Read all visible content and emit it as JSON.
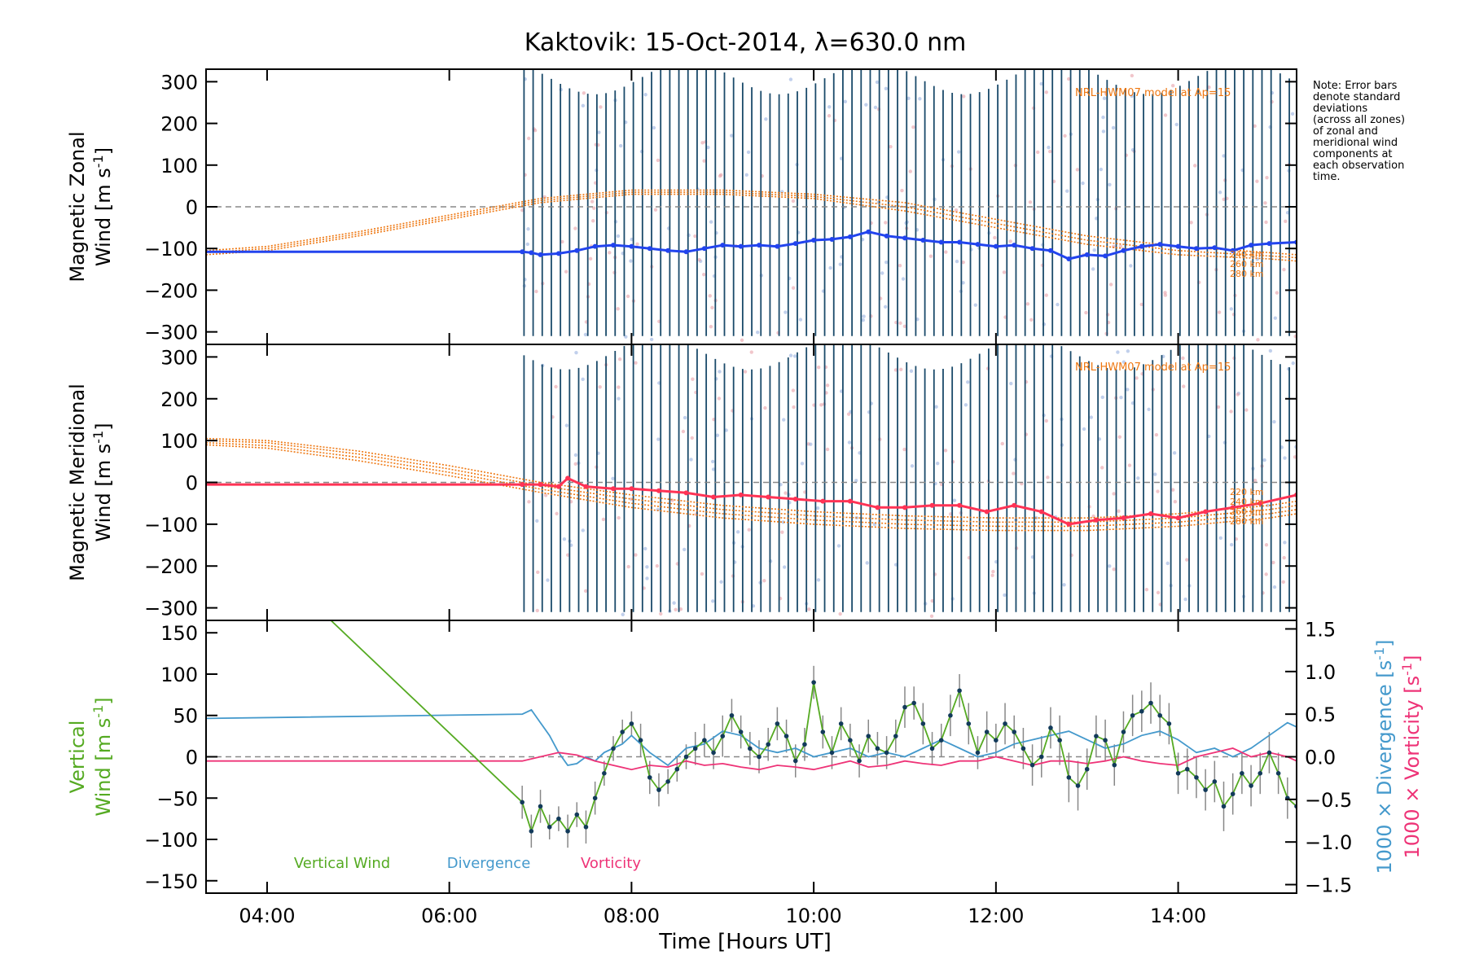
{
  "title": "Kaktovik: 15-Oct-2014, λ=630.0 nm",
  "note": [
    "Note: Error bars",
    "denote standard",
    "deviations",
    "(across all zones)",
    "of zonal and",
    "meridional wind",
    "components at",
    "each observation",
    "time."
  ],
  "xlabel": "Time [Hours UT]",
  "colors": {
    "zonal": "#2244ee",
    "meridional": "#ff3355",
    "vertical": "#55aa22",
    "divergence": "#4499cc",
    "vorticity": "#ee3377",
    "hwm": "#ee7711",
    "errorbar": "#1a4a6a",
    "axis": "#000000"
  },
  "chart_data": [
    {
      "type": "line",
      "ylabel_lines": [
        "Magnetic Zonal",
        "Wind [m s^-1]"
      ],
      "ylim": [
        -330,
        330
      ],
      "yticks": [
        300,
        200,
        100,
        0,
        -100,
        -200,
        -300
      ],
      "xlim": [
        3.33,
        15.3
      ],
      "xticks": [
        "04:00",
        "06:00",
        "08:00",
        "10:00",
        "12:00",
        "14:00"
      ],
      "model_label": "NRL-HWM07 model at Ap=15",
      "model_alt_labels": [
        "240 km",
        "260 km",
        "280 km"
      ],
      "series": [
        {
          "x": [
            3.33,
            6.8,
            6.9,
            7.0,
            7.2,
            7.4,
            7.6,
            7.8,
            8.0,
            8.2,
            8.4,
            8.6,
            8.8,
            9.0,
            9.2,
            9.4,
            9.6,
            9.8,
            10.0,
            10.2,
            10.4,
            10.6,
            10.8,
            11.0,
            11.2,
            11.4,
            11.6,
            11.8,
            12.0,
            12.2,
            12.4,
            12.6,
            12.8,
            13.0,
            13.2,
            13.4,
            13.6,
            13.8,
            14.0,
            14.2,
            14.4,
            14.6,
            14.8,
            15.0,
            15.3
          ],
          "y": [
            -108,
            -108,
            -110,
            -115,
            -112,
            -105,
            -95,
            -92,
            -95,
            -100,
            -105,
            -108,
            -100,
            -92,
            -95,
            -92,
            -95,
            -88,
            -80,
            -78,
            -72,
            -60,
            -70,
            -75,
            -80,
            -85,
            -85,
            -90,
            -95,
            -92,
            -100,
            -105,
            -125,
            -115,
            -118,
            -105,
            -95,
            -90,
            -95,
            -100,
            -98,
            -105,
            -92,
            -88,
            -85
          ]
        }
      ],
      "model_series": [
        {
          "x": [
            3.33,
            4,
            5,
            6,
            7,
            8,
            9,
            10,
            11,
            12,
            13,
            14,
            15,
            15.3
          ],
          "y": [
            -105,
            -95,
            -60,
            -20,
            20,
            40,
            40,
            30,
            10,
            -30,
            -70,
            -95,
            -110,
            -115
          ]
        },
        {
          "x": [
            3.33,
            4,
            5,
            6,
            7,
            8,
            9,
            10,
            11,
            12,
            13,
            14,
            15,
            15.3
          ],
          "y": [
            -110,
            -100,
            -65,
            -25,
            15,
            35,
            35,
            25,
            0,
            -40,
            -80,
            -105,
            -118,
            -122
          ]
        },
        {
          "x": [
            3.33,
            4,
            5,
            6,
            7,
            8,
            9,
            10,
            11,
            12,
            13,
            14,
            15,
            15.3
          ],
          "y": [
            -115,
            -105,
            -70,
            -30,
            10,
            30,
            30,
            20,
            -10,
            -50,
            -90,
            -115,
            -125,
            -130
          ]
        }
      ]
    },
    {
      "type": "line",
      "ylabel_lines": [
        "Magnetic Meridional",
        "Wind [m s^-1]"
      ],
      "ylim": [
        -330,
        330
      ],
      "yticks": [
        300,
        200,
        100,
        0,
        -100,
        -200,
        -300
      ],
      "xlim": [
        3.33,
        15.3
      ],
      "xticks": [
        "04:00",
        "06:00",
        "08:00",
        "10:00",
        "12:00",
        "14:00"
      ],
      "model_label": "NRL-HWM07 model at Ap=15",
      "model_alt_labels": [
        "220 km",
        "240 km",
        "260 km",
        "280 km"
      ],
      "series": [
        {
          "x": [
            3.33,
            6.8,
            7.0,
            7.2,
            7.3,
            7.5,
            7.8,
            8.0,
            8.3,
            8.6,
            8.9,
            9.2,
            9.5,
            9.8,
            10.1,
            10.4,
            10.7,
            11.0,
            11.3,
            11.6,
            11.9,
            12.2,
            12.5,
            12.8,
            13.1,
            13.4,
            13.7,
            14.0,
            14.3,
            14.6,
            14.9,
            15.3
          ],
          "y": [
            -5,
            -5,
            -5,
            -10,
            10,
            -10,
            -15,
            -15,
            -20,
            -25,
            -35,
            -30,
            -35,
            -40,
            -45,
            -45,
            -60,
            -60,
            -55,
            -55,
            -70,
            -55,
            -70,
            -100,
            -90,
            -85,
            -75,
            -85,
            -70,
            -60,
            -50,
            -30
          ]
        }
      ],
      "model_series": [
        {
          "x": [
            3.33,
            4,
            5,
            6,
            7,
            8,
            9,
            10,
            11,
            12,
            13,
            14,
            15,
            15.3
          ],
          "y": [
            105,
            100,
            75,
            40,
            0,
            -30,
            -55,
            -70,
            -80,
            -85,
            -85,
            -75,
            -55,
            -45
          ]
        },
        {
          "x": [
            3.33,
            4,
            5,
            6,
            7,
            8,
            9,
            10,
            11,
            12,
            13,
            14,
            15,
            15.3
          ],
          "y": [
            100,
            95,
            68,
            32,
            -8,
            -40,
            -65,
            -80,
            -90,
            -95,
            -95,
            -85,
            -65,
            -55
          ]
        },
        {
          "x": [
            3.33,
            4,
            5,
            6,
            7,
            8,
            9,
            10,
            11,
            12,
            13,
            14,
            15,
            15.3
          ],
          "y": [
            95,
            88,
            60,
            24,
            -16,
            -50,
            -75,
            -90,
            -100,
            -105,
            -105,
            -95,
            -75,
            -65
          ]
        },
        {
          "x": [
            3.33,
            4,
            5,
            6,
            7,
            8,
            9,
            10,
            11,
            12,
            13,
            14,
            15,
            15.3
          ],
          "y": [
            90,
            82,
            52,
            16,
            -24,
            -60,
            -85,
            -100,
            -110,
            -115,
            -115,
            -105,
            -85,
            -75
          ]
        }
      ]
    },
    {
      "type": "line",
      "ylabel_lines": [
        "Vertical",
        "Wind [m s^-1]"
      ],
      "ylim": [
        -165,
        165
      ],
      "yticks": [
        150,
        100,
        50,
        0,
        -50,
        -100,
        -150
      ],
      "y2label_divergence": "1000 × Divergence [s^-1]",
      "y2label_vorticity": "1000 × Vorticity [s^-1]",
      "y2lim": [
        -1.6,
        1.6
      ],
      "y2ticks": [
        1.5,
        1.0,
        0.5,
        0.0,
        -0.5,
        -1.0,
        -1.5
      ],
      "xlim": [
        3.33,
        15.3
      ],
      "xticks": [
        "04:00",
        "06:00",
        "08:00",
        "10:00",
        "12:00",
        "14:00"
      ],
      "legend": [
        "Vertical Wind",
        "Divergence",
        "Vorticity"
      ],
      "vertical_wind": {
        "x": [
          4.7,
          6.8,
          6.9,
          7.0,
          7.1,
          7.2,
          7.3,
          7.4,
          7.5,
          7.6,
          7.7,
          7.8,
          7.9,
          8.0,
          8.1,
          8.2,
          8.3,
          8.4,
          8.5,
          8.6,
          8.7,
          8.8,
          8.9,
          9.0,
          9.1,
          9.2,
          9.3,
          9.4,
          9.5,
          9.6,
          9.7,
          9.8,
          9.9,
          10.0,
          10.1,
          10.2,
          10.3,
          10.4,
          10.5,
          10.6,
          10.7,
          10.8,
          10.9,
          11.0,
          11.1,
          11.2,
          11.3,
          11.4,
          11.5,
          11.6,
          11.7,
          11.8,
          11.9,
          12.0,
          12.1,
          12.2,
          12.3,
          12.4,
          12.5,
          12.6,
          12.7,
          12.8,
          12.9,
          13.0,
          13.1,
          13.2,
          13.3,
          13.4,
          13.5,
          13.6,
          13.7,
          13.8,
          13.9,
          14.0,
          14.1,
          14.2,
          14.3,
          14.4,
          14.5,
          14.6,
          14.7,
          14.8,
          14.9,
          15.0,
          15.1,
          15.2,
          15.3
        ],
        "y": [
          165,
          -55,
          -90,
          -60,
          -85,
          -75,
          -90,
          -70,
          -85,
          -50,
          -20,
          10,
          30,
          40,
          20,
          -25,
          -40,
          -30,
          -15,
          0,
          10,
          20,
          5,
          25,
          50,
          30,
          10,
          0,
          15,
          40,
          25,
          -5,
          15,
          90,
          30,
          5,
          40,
          20,
          -5,
          25,
          10,
          5,
          25,
          60,
          65,
          40,
          10,
          20,
          50,
          80,
          40,
          5,
          30,
          20,
          40,
          30,
          10,
          -10,
          0,
          35,
          20,
          -25,
          -35,
          -15,
          25,
          20,
          -10,
          30,
          50,
          55,
          65,
          50,
          40,
          -20,
          -15,
          -25,
          -40,
          -30,
          -60,
          -45,
          -20,
          -35,
          -20,
          5,
          -20,
          -50,
          -60
        ],
        "err": [
          0,
          20,
          20,
          20,
          15,
          15,
          20,
          15,
          20,
          20,
          15,
          15,
          15,
          15,
          20,
          20,
          20,
          15,
          15,
          15,
          20,
          20,
          20,
          25,
          20,
          20,
          20,
          20,
          20,
          20,
          20,
          20,
          20,
          20,
          20,
          20,
          20,
          20,
          20,
          20,
          20,
          20,
          20,
          25,
          20,
          25,
          20,
          20,
          25,
          20,
          25,
          20,
          25,
          20,
          25,
          20,
          25,
          25,
          25,
          25,
          30,
          30,
          30,
          25,
          25,
          25,
          25,
          25,
          25,
          25,
          25,
          25,
          25,
          25,
          25,
          25,
          25,
          25,
          30,
          25,
          25,
          25,
          25,
          25,
          25,
          25,
          25
        ]
      },
      "divergence": {
        "x": [
          3.33,
          6.8,
          6.9,
          7.0,
          7.1,
          7.2,
          7.3,
          7.4,
          7.5,
          7.6,
          7.7,
          7.8,
          7.9,
          8.0,
          8.2,
          8.4,
          8.6,
          8.8,
          9.0,
          9.2,
          9.4,
          9.6,
          9.8,
          10.0,
          10.2,
          10.4,
          10.6,
          10.8,
          11.0,
          11.2,
          11.4,
          11.6,
          11.8,
          12.0,
          12.2,
          12.4,
          12.6,
          12.8,
          13.0,
          13.2,
          13.4,
          13.6,
          13.8,
          14.0,
          14.2,
          14.4,
          14.6,
          14.8,
          15.0,
          15.2,
          15.3
        ],
        "y": [
          0.45,
          0.5,
          0.55,
          0.4,
          0.25,
          0.05,
          -0.1,
          -0.08,
          0.0,
          -0.05,
          0.05,
          0.1,
          0.15,
          0.25,
          0.05,
          -0.1,
          0.1,
          0.15,
          0.3,
          0.25,
          0.1,
          0.05,
          0.1,
          0.0,
          0.05,
          0.1,
          0.0,
          0.05,
          0.0,
          0.1,
          0.2,
          0.1,
          0.0,
          0.05,
          0.15,
          0.2,
          0.25,
          0.3,
          0.2,
          0.1,
          0.15,
          0.25,
          0.3,
          0.2,
          0.05,
          0.1,
          0.0,
          0.1,
          0.25,
          0.4,
          0.35
        ]
      },
      "vorticity": {
        "x": [
          3.33,
          6.8,
          7.0,
          7.2,
          7.4,
          7.6,
          7.8,
          8.0,
          8.2,
          8.4,
          8.6,
          8.8,
          9.0,
          9.2,
          9.4,
          9.6,
          9.8,
          10.0,
          10.2,
          10.4,
          10.6,
          10.8,
          11.0,
          11.2,
          11.4,
          11.6,
          11.8,
          12.0,
          12.2,
          12.4,
          12.6,
          12.8,
          13.0,
          13.2,
          13.4,
          13.6,
          13.8,
          14.0,
          14.2,
          14.4,
          14.6,
          14.8,
          15.0,
          15.2,
          15.3
        ],
        "y": [
          -0.05,
          -0.05,
          0.0,
          0.05,
          0.02,
          -0.05,
          -0.1,
          -0.15,
          -0.1,
          -0.12,
          -0.05,
          -0.1,
          -0.08,
          -0.12,
          -0.15,
          -0.1,
          -0.12,
          -0.15,
          -0.1,
          -0.05,
          -0.12,
          -0.1,
          -0.05,
          -0.08,
          -0.1,
          -0.05,
          -0.05,
          0.0,
          -0.05,
          -0.1,
          -0.05,
          -0.05,
          -0.08,
          -0.05,
          0.0,
          -0.05,
          -0.08,
          -0.1,
          0.0,
          0.05,
          0.1,
          0.0,
          0.05,
          0.0,
          -0.05
        ]
      }
    }
  ]
}
